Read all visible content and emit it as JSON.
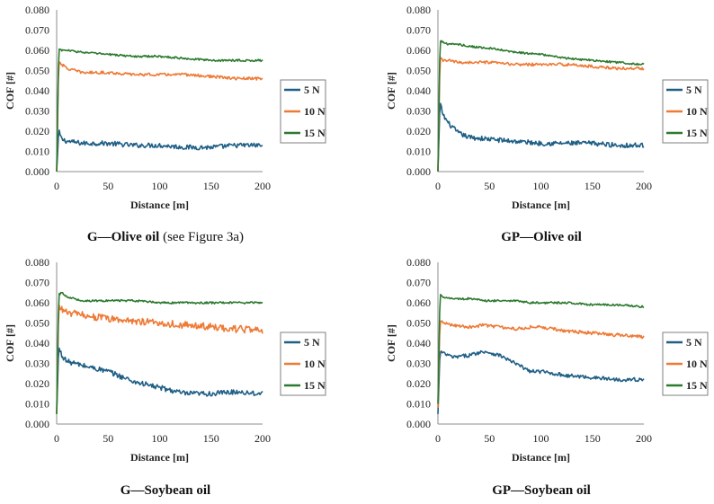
{
  "colors": {
    "s5": "#1f5f86",
    "s10": "#ee7a35",
    "s15": "#2c7a2f",
    "axis": "#8c8c8c"
  },
  "captions": [
    {
      "bold": "G—Olive oil",
      "note": " (see Figure 3a)"
    },
    {
      "bold": "GP—Olive oil",
      "note": ""
    },
    {
      "bold": "G—Soybean oil",
      "note": ""
    },
    {
      "bold": "GP—Soybean oil",
      "note": ""
    }
  ],
  "chart_data": [
    {
      "type": "line",
      "caption": "G—Olive oil (see Figure 3a)",
      "xlabel": "Distance [m]",
      "ylabel": "COF [#]",
      "xlim": [
        0,
        200
      ],
      "ylim": [
        0,
        0.08
      ],
      "xticks": [
        "0",
        "50",
        "100",
        "150",
        "200"
      ],
      "yticks": [
        "0.000",
        "0.010",
        "0.020",
        "0.030",
        "0.040",
        "0.050",
        "0.060",
        "0.070",
        "0.080"
      ],
      "legend": "right",
      "x": [
        0,
        2,
        5,
        10,
        25,
        50,
        75,
        100,
        125,
        150,
        175,
        200
      ],
      "series": [
        {
          "name": "5 N",
          "values": [
            0.0,
            0.02,
            0.016,
            0.015,
            0.014,
            0.014,
            0.013,
            0.013,
            0.012,
            0.012,
            0.013,
            0.013
          ],
          "noise": 0.0012
        },
        {
          "name": "10 N",
          "values": [
            0.0,
            0.055,
            0.053,
            0.051,
            0.049,
            0.049,
            0.048,
            0.048,
            0.048,
            0.047,
            0.046,
            0.046
          ],
          "noise": 0.0007
        },
        {
          "name": "15 N",
          "values": [
            0.0,
            0.061,
            0.06,
            0.06,
            0.059,
            0.058,
            0.057,
            0.057,
            0.056,
            0.055,
            0.055,
            0.055
          ],
          "noise": 0.0005
        }
      ]
    },
    {
      "type": "line",
      "caption": "GP—Olive oil",
      "xlabel": "Distance [m]",
      "ylabel": "COF [#]",
      "xlim": [
        0,
        200
      ],
      "ylim": [
        0,
        0.08
      ],
      "xticks": [
        "0",
        "50",
        "100",
        "150",
        "200"
      ],
      "yticks": [
        "0.000",
        "0.010",
        "0.020",
        "0.030",
        "0.040",
        "0.050",
        "0.060",
        "0.070",
        "0.080"
      ],
      "legend": "right",
      "x": [
        0,
        2,
        5,
        10,
        20,
        30,
        50,
        75,
        100,
        125,
        150,
        175,
        200
      ],
      "series": [
        {
          "name": "5 N",
          "values": [
            0.0,
            0.034,
            0.028,
            0.024,
            0.019,
            0.017,
            0.016,
            0.015,
            0.014,
            0.014,
            0.014,
            0.013,
            0.013
          ],
          "noise": 0.0012
        },
        {
          "name": "10 N",
          "values": [
            0.0,
            0.056,
            0.055,
            0.055,
            0.054,
            0.054,
            0.054,
            0.053,
            0.053,
            0.053,
            0.052,
            0.051,
            0.051
          ],
          "noise": 0.0007
        },
        {
          "name": "15 N",
          "values": [
            0.0,
            0.065,
            0.064,
            0.063,
            0.063,
            0.062,
            0.061,
            0.059,
            0.058,
            0.056,
            0.055,
            0.054,
            0.053
          ],
          "noise": 0.0005
        }
      ]
    },
    {
      "type": "line",
      "caption": "G—Soybean oil",
      "xlabel": "Distance [m]",
      "ylabel": "COF [#]",
      "xlim": [
        0,
        200
      ],
      "ylim": [
        0,
        0.08
      ],
      "xticks": [
        "0",
        "50",
        "100",
        "150",
        "200"
      ],
      "yticks": [
        "0.000",
        "0.010",
        "0.020",
        "0.030",
        "0.040",
        "0.050",
        "0.060",
        "0.070",
        "0.080"
      ],
      "legend": "right",
      "x": [
        0,
        2,
        5,
        10,
        25,
        50,
        75,
        100,
        125,
        150,
        175,
        200
      ],
      "series": [
        {
          "name": "5 N",
          "values": [
            0.005,
            0.038,
            0.034,
            0.031,
            0.029,
            0.026,
            0.021,
            0.018,
            0.015,
            0.015,
            0.016,
            0.015
          ],
          "noise": 0.0013
        },
        {
          "name": "10 N",
          "values": [
            0.005,
            0.058,
            0.057,
            0.055,
            0.054,
            0.052,
            0.051,
            0.05,
            0.049,
            0.048,
            0.047,
            0.046
          ],
          "noise": 0.0018
        },
        {
          "name": "15 N",
          "values": [
            0.005,
            0.064,
            0.065,
            0.063,
            0.061,
            0.061,
            0.061,
            0.06,
            0.06,
            0.06,
            0.06,
            0.06
          ],
          "noise": 0.0005
        }
      ]
    },
    {
      "type": "line",
      "caption": "GP—Soybean oil",
      "xlabel": "Distance [m]",
      "ylabel": "COF [#]",
      "xlim": [
        0,
        200
      ],
      "ylim": [
        0,
        0.08
      ],
      "xticks": [
        "0",
        "50",
        "100",
        "150",
        "200"
      ],
      "yticks": [
        "0.000",
        "0.010",
        "0.020",
        "0.030",
        "0.040",
        "0.050",
        "0.060",
        "0.070",
        "0.080"
      ],
      "legend": "right",
      "x": [
        0,
        2,
        5,
        15,
        30,
        45,
        60,
        75,
        90,
        100,
        125,
        150,
        175,
        200
      ],
      "series": [
        {
          "name": "5 N",
          "values": [
            0.005,
            0.036,
            0.035,
            0.033,
            0.034,
            0.036,
            0.034,
            0.03,
            0.026,
            0.026,
            0.024,
            0.023,
            0.022,
            0.022
          ],
          "noise": 0.0009
        },
        {
          "name": "10 N",
          "values": [
            0.008,
            0.051,
            0.05,
            0.049,
            0.048,
            0.049,
            0.048,
            0.047,
            0.048,
            0.048,
            0.046,
            0.045,
            0.044,
            0.043
          ],
          "noise": 0.0008
        },
        {
          "name": "15 N",
          "values": [
            0.01,
            0.064,
            0.063,
            0.062,
            0.062,
            0.061,
            0.061,
            0.061,
            0.06,
            0.06,
            0.06,
            0.059,
            0.059,
            0.058
          ],
          "noise": 0.0005
        }
      ]
    }
  ]
}
